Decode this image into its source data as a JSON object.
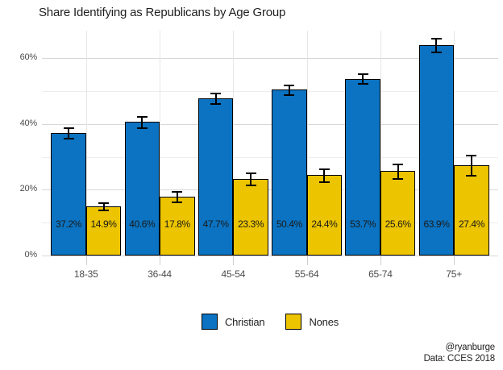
{
  "title": "Share Identifying as Republicans by Age Group",
  "caption": {
    "handle": "@ryanburge",
    "source": "Data: CCES 2018"
  },
  "chart_data": {
    "type": "bar",
    "title": "Share Identifying as Republicans by Age Group",
    "categories": [
      "18-35",
      "36-44",
      "45-54",
      "55-64",
      "65-74",
      "75+"
    ],
    "series": [
      {
        "name": "Christian",
        "color": "#0b73c2",
        "values": [
          37.2,
          40.6,
          47.7,
          50.4,
          53.7,
          63.9
        ],
        "errors": [
          1.4,
          1.6,
          1.5,
          1.3,
          1.4,
          1.9
        ],
        "labels": [
          "37.2%",
          "40.6%",
          "47.7%",
          "50.4%",
          "53.7%",
          "63.9%"
        ]
      },
      {
        "name": "Nones",
        "color": "#ecc400",
        "values": [
          14.9,
          17.8,
          23.3,
          24.4,
          25.6,
          27.4
        ],
        "errors": [
          1.0,
          1.5,
          1.8,
          1.8,
          2.0,
          3.0
        ],
        "labels": [
          "14.9%",
          "17.8%",
          "23.3%",
          "24.4%",
          "25.6%",
          "27.4%"
        ]
      }
    ],
    "xlabel": "",
    "ylabel": "",
    "ylim": [
      0,
      68
    ],
    "yticks": [
      {
        "v": 0,
        "label": "0%"
      },
      {
        "v": 20,
        "label": "20%"
      },
      {
        "v": 40,
        "label": "40%"
      },
      {
        "v": 60,
        "label": "60%"
      }
    ],
    "minor_yticks": [
      10,
      30,
      50
    ],
    "grid": true,
    "error_bars": true,
    "bar_value_labels": true,
    "legend_position": "bottom",
    "bar_outline_color": "#000000",
    "value_label_color": "#1a1a1a"
  }
}
